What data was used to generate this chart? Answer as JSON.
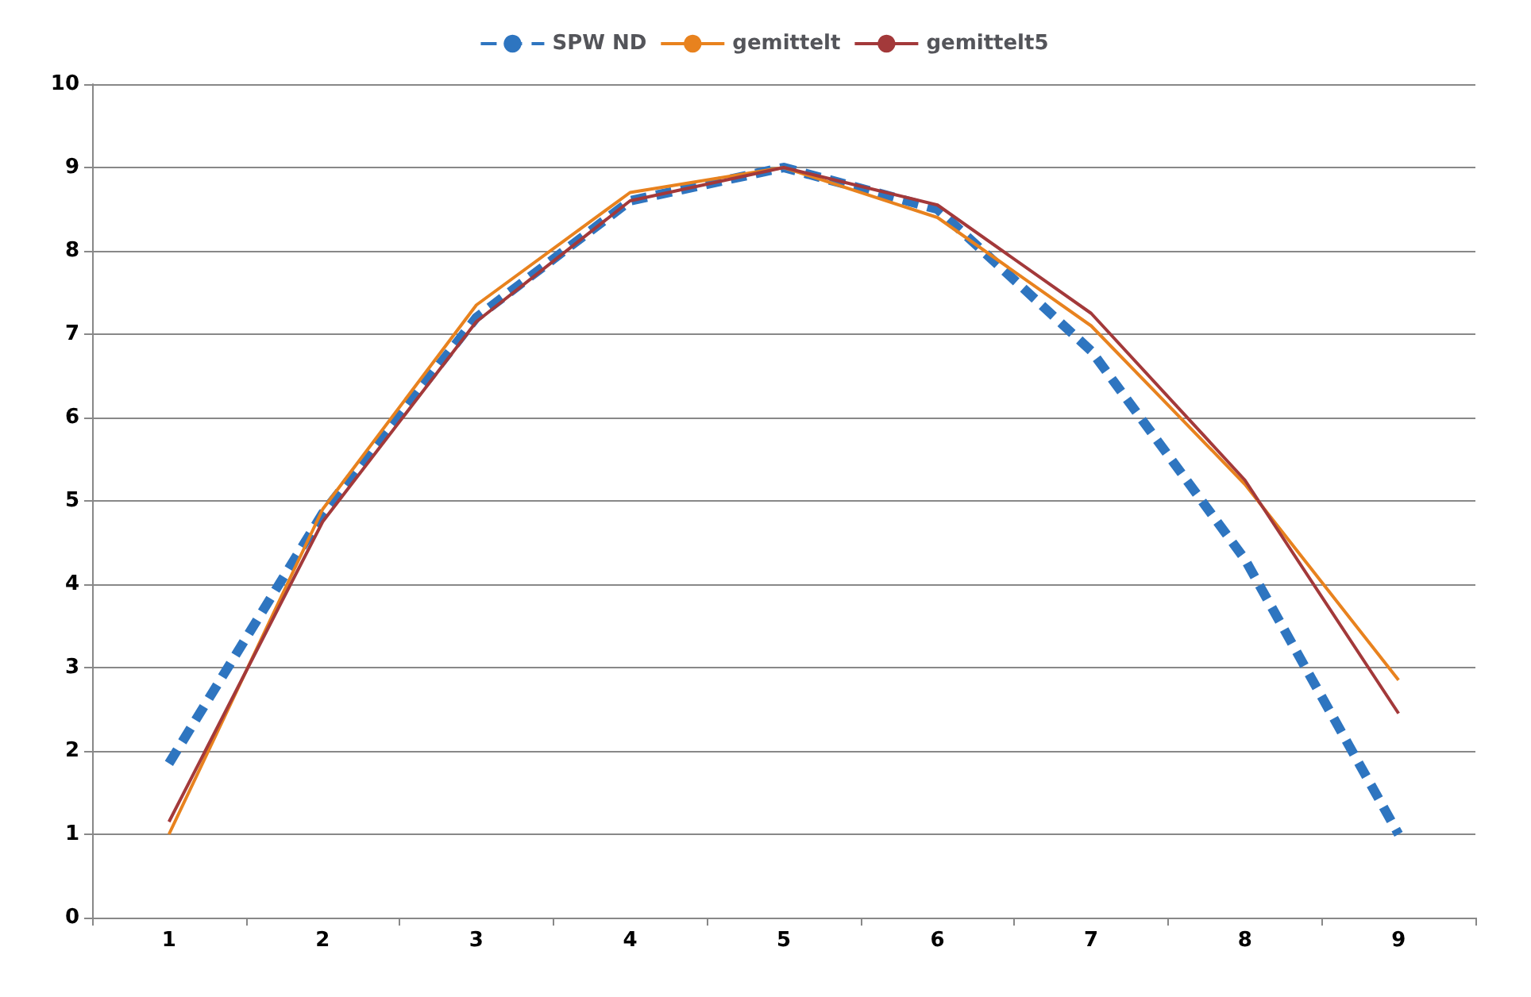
{
  "chart_data": {
    "type": "line",
    "categories": [
      "1",
      "2",
      "3",
      "4",
      "5",
      "6",
      "7",
      "8",
      "9"
    ],
    "series": [
      {
        "name": "SPW ND",
        "color": "#2e75c0",
        "line_style": "dashed",
        "values": [
          1.85,
          4.85,
          7.2,
          8.6,
          9.0,
          8.5,
          6.8,
          4.3,
          1.0
        ]
      },
      {
        "name": "gemittelt",
        "color": "#e8821e",
        "line_style": "solid",
        "values": [
          1.0,
          4.9,
          7.35,
          8.7,
          9.0,
          8.4,
          7.1,
          5.2,
          2.85
        ]
      },
      {
        "name": "gemittelt5",
        "color": "#a3393a",
        "line_style": "solid",
        "values": [
          1.15,
          4.75,
          7.15,
          8.6,
          9.0,
          8.55,
          7.25,
          5.25,
          2.45
        ]
      }
    ],
    "ylim": [
      0,
      10
    ],
    "yticks": [
      0,
      1,
      2,
      3,
      4,
      5,
      6,
      7,
      8,
      9,
      10
    ],
    "grid": "y",
    "legend": "top",
    "marker": "none"
  }
}
